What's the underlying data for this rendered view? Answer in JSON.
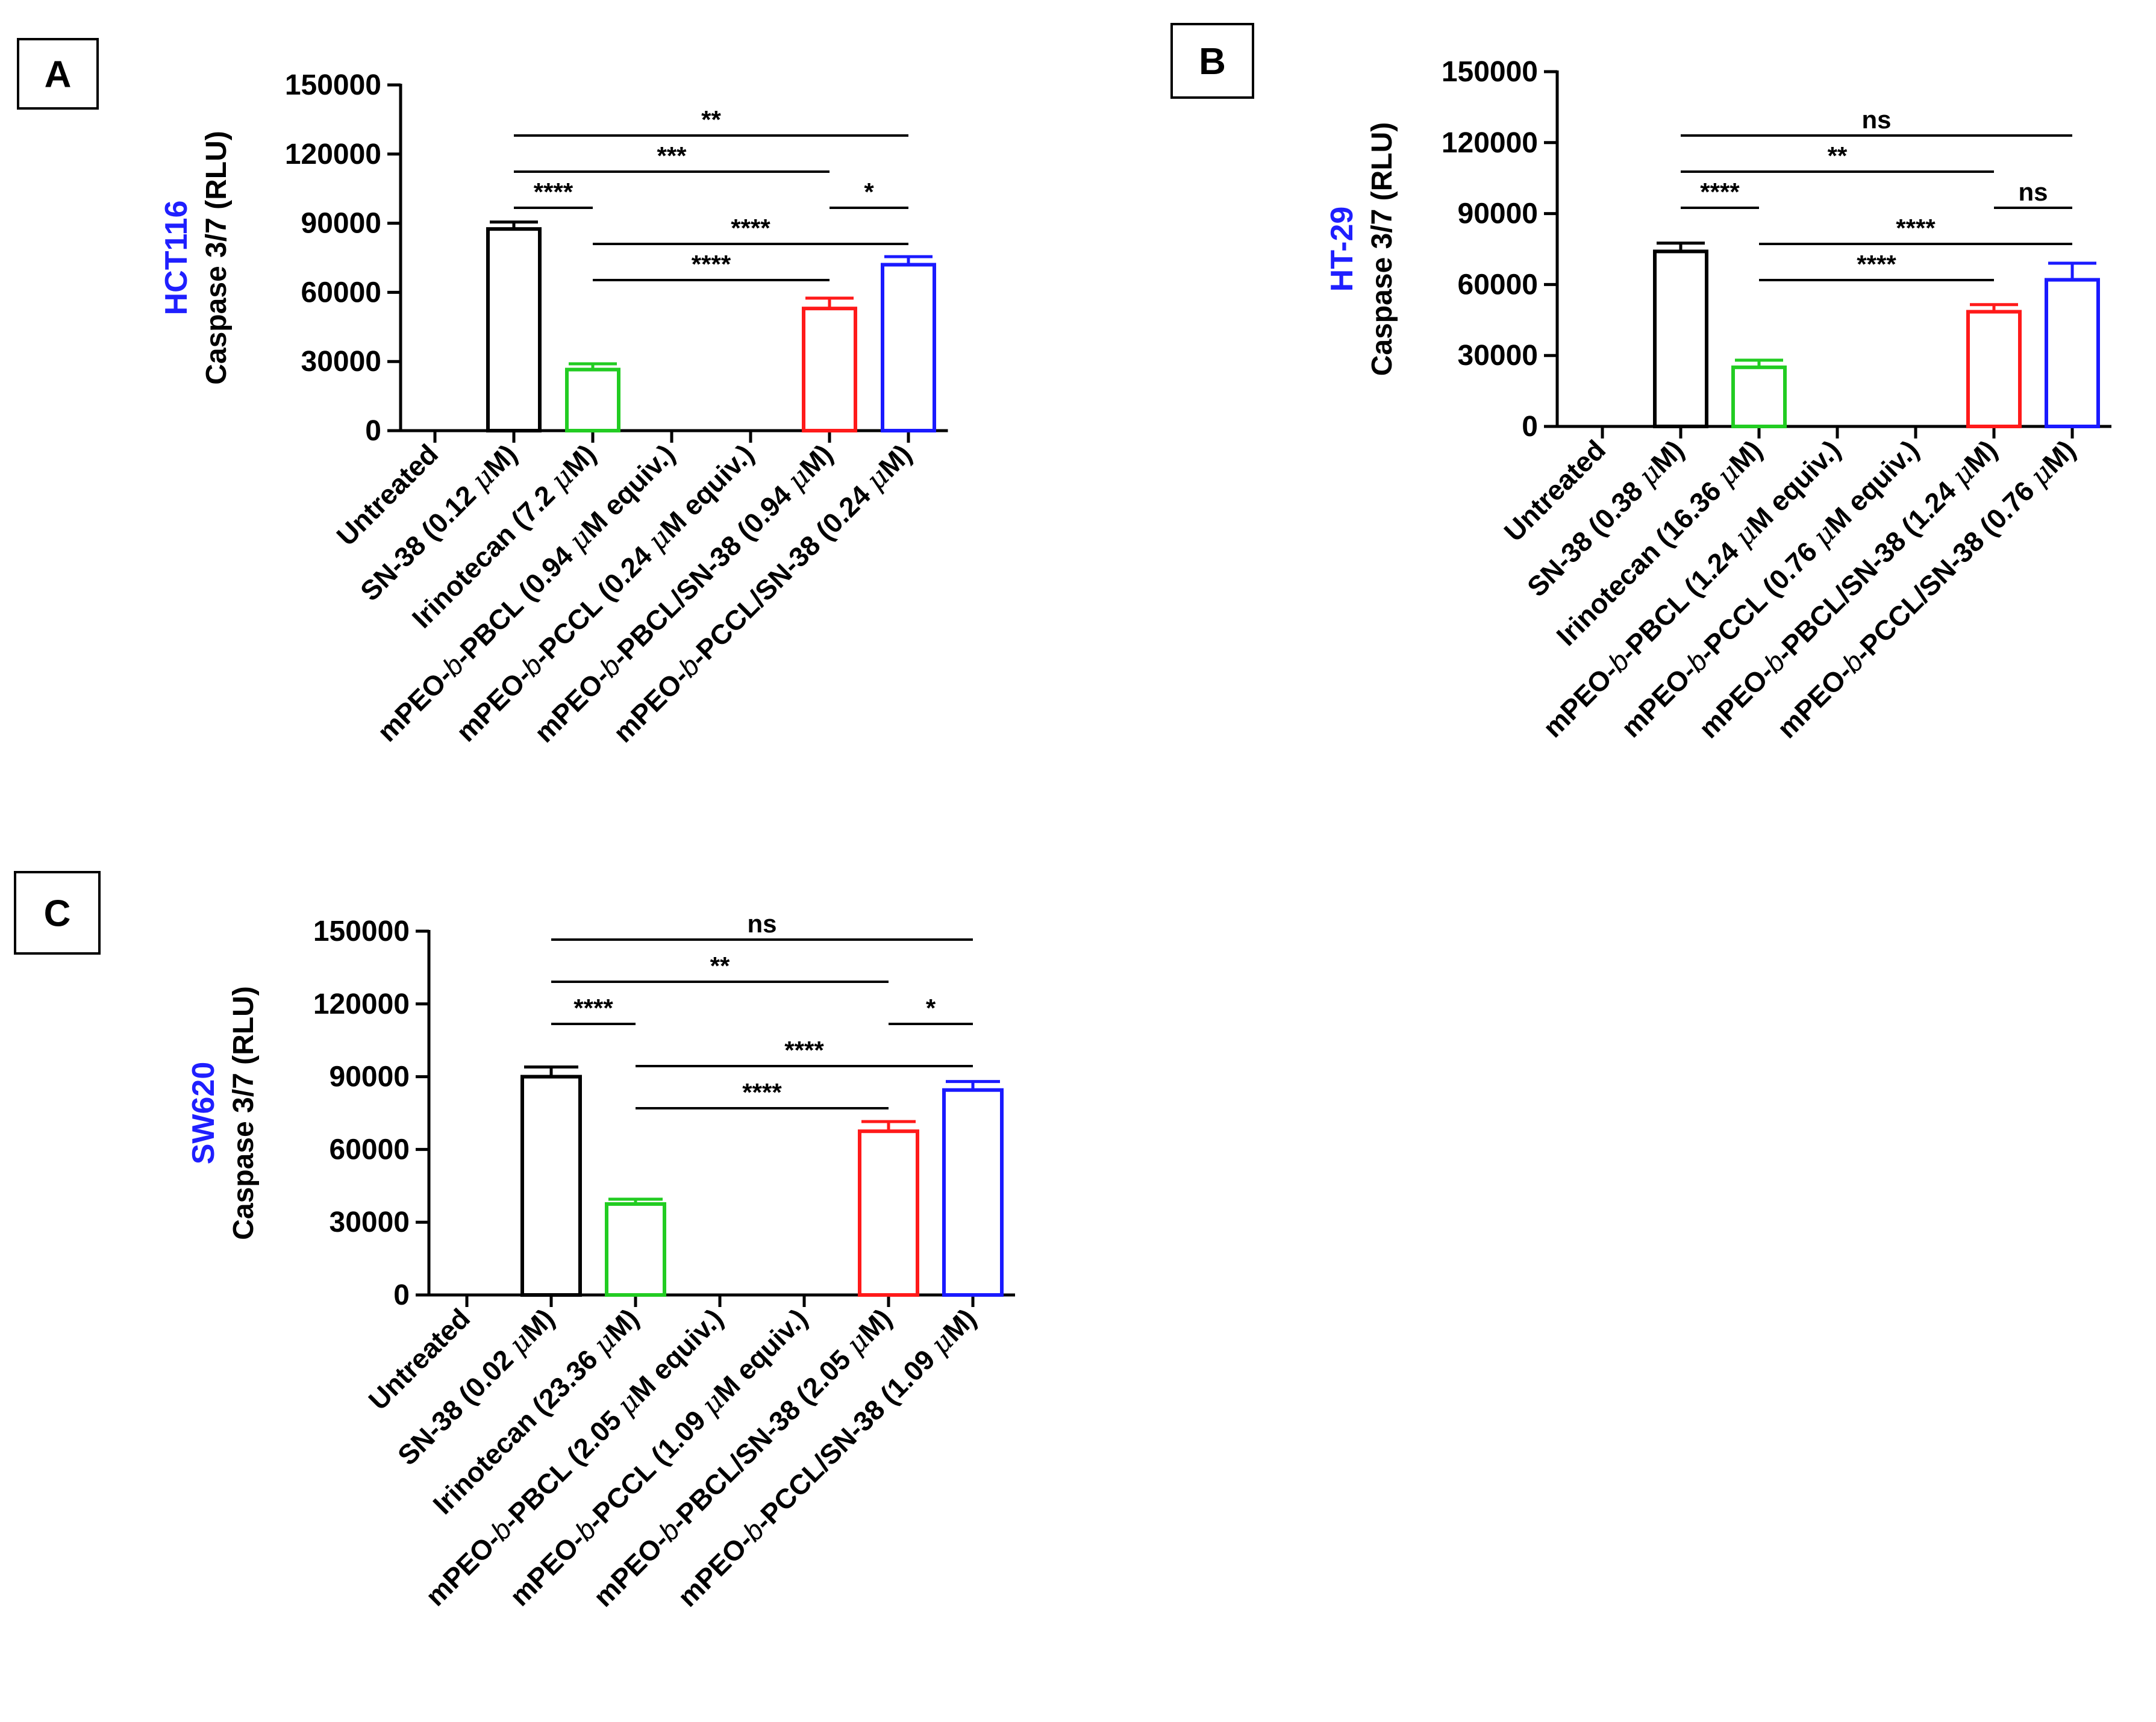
{
  "figure": {
    "colors": {
      "axis": "#000000",
      "cell_line_label": "#1f1fff",
      "panel_border": "#000000"
    }
  },
  "chart_data": [
    {
      "panel": "A",
      "type": "bar",
      "cell_line": "HCT116",
      "ylabel": "Caspase 3/7 (RLU)",
      "xlabel": "",
      "ylim": [
        0,
        150000
      ],
      "yticks": [
        "0",
        "30000",
        "60000",
        "90000",
        "120000",
        "150000"
      ],
      "grid": false,
      "categories": [
        {
          "pre": "Untreated",
          "it": "",
          "post": "",
          "greek": "",
          "tail": ""
        },
        {
          "pre": "SN-38 (0.12 ",
          "it": "",
          "post": "",
          "greek": "μ",
          "tail": "M)"
        },
        {
          "pre": "Irinotecan (7.2 ",
          "it": "",
          "post": "",
          "greek": "μ",
          "tail": "M)"
        },
        {
          "pre": "mPEO-",
          "it": "b",
          "post": "-PBCL (0.94 ",
          "greek": "μ",
          "tail": "M equiv.)"
        },
        {
          "pre": "mPEO-",
          "it": "b",
          "post": "-PCCL (0.24 ",
          "greek": "μ",
          "tail": "M equiv.)"
        },
        {
          "pre": "mPEO-",
          "it": "b",
          "post": "-PBCL/SN-38 (0.94 ",
          "greek": "μ",
          "tail": "M)"
        },
        {
          "pre": "mPEO-",
          "it": "b",
          "post": "-PCCL/SN-38 (0.24 ",
          "greek": "μ",
          "tail": "M)"
        }
      ],
      "values": [
        0,
        87500,
        26500,
        0,
        0,
        53000,
        72000
      ],
      "errors": [
        0,
        3000,
        2500,
        0,
        0,
        4500,
        3500
      ],
      "bar_colors": [
        "#000000",
        "#000000",
        "#22cc22",
        "#000000",
        "#000000",
        "#ff1a1a",
        "#1a1aff"
      ],
      "significance": [
        {
          "from": 1,
          "to": 6,
          "level": 4,
          "label": "**"
        },
        {
          "from": 1,
          "to": 5,
          "level": 3,
          "label": "***"
        },
        {
          "from": 1,
          "to": 2,
          "level": 2,
          "label": "****"
        },
        {
          "from": 5,
          "to": 6,
          "level": 2,
          "label": "*"
        },
        {
          "from": 2,
          "to": 6,
          "level": 1,
          "label": "****"
        },
        {
          "from": 2,
          "to": 5,
          "level": 0,
          "label": "****"
        }
      ]
    },
    {
      "panel": "B",
      "type": "bar",
      "cell_line": "HT-29",
      "ylabel": "Caspase 3/7 (RLU)",
      "xlabel": "",
      "ylim": [
        0,
        150000
      ],
      "yticks": [
        "0",
        "30000",
        "60000",
        "90000",
        "120000",
        "150000"
      ],
      "grid": false,
      "categories": [
        {
          "pre": "Untreated",
          "it": "",
          "post": "",
          "greek": "",
          "tail": ""
        },
        {
          "pre": "SN-38 (0.38 ",
          "it": "",
          "post": "",
          "greek": "μ",
          "tail": "M)"
        },
        {
          "pre": "Irinotecan (16.36 ",
          "it": "",
          "post": "",
          "greek": "μ",
          "tail": "M)"
        },
        {
          "pre": "mPEO-",
          "it": "b",
          "post": "-PBCL (1.24 ",
          "greek": "μ",
          "tail": "M equiv.)"
        },
        {
          "pre": "mPEO-",
          "it": "b",
          "post": "-PCCL (0.76 ",
          "greek": "μ",
          "tail": "M equiv.)"
        },
        {
          "pre": "mPEO-",
          "it": "b",
          "post": "-PBCL/SN-38 (1.24 ",
          "greek": "μ",
          "tail": "M)"
        },
        {
          "pre": "mPEO-",
          "it": "b",
          "post": "-PCCL/SN-38 (0.76 ",
          "greek": "μ",
          "tail": "M)"
        }
      ],
      "values": [
        0,
        74000,
        25000,
        0,
        0,
        48500,
        62000
      ],
      "errors": [
        0,
        3500,
        3000,
        0,
        0,
        3000,
        7000
      ],
      "bar_colors": [
        "#000000",
        "#000000",
        "#22cc22",
        "#000000",
        "#000000",
        "#ff1a1a",
        "#1a1aff"
      ],
      "significance": [
        {
          "from": 1,
          "to": 6,
          "level": 4,
          "label": "ns"
        },
        {
          "from": 1,
          "to": 5,
          "level": 3,
          "label": "**"
        },
        {
          "from": 1,
          "to": 2,
          "level": 2,
          "label": "****"
        },
        {
          "from": 5,
          "to": 6,
          "level": 2,
          "label": "ns"
        },
        {
          "from": 2,
          "to": 6,
          "level": 1,
          "label": "****"
        },
        {
          "from": 2,
          "to": 5,
          "level": 0,
          "label": "****"
        }
      ]
    },
    {
      "panel": "C",
      "type": "bar",
      "cell_line": "SW620",
      "ylabel": "Caspase 3/7 (RLU)",
      "xlabel": "",
      "ylim": [
        0,
        150000
      ],
      "yticks": [
        "0",
        "30000",
        "60000",
        "90000",
        "120000",
        "150000"
      ],
      "grid": false,
      "categories": [
        {
          "pre": "Untreated",
          "it": "",
          "post": "",
          "greek": "",
          "tail": ""
        },
        {
          "pre": "SN-38 (0.02 ",
          "it": "",
          "post": "",
          "greek": "μ",
          "tail": "M)"
        },
        {
          "pre": "Irinotecan (23.36 ",
          "it": "",
          "post": "",
          "greek": "μ",
          "tail": "M)"
        },
        {
          "pre": "mPEO-",
          "it": "b",
          "post": "-PBCL (2.05 ",
          "greek": "μ",
          "tail": "M equiv.)"
        },
        {
          "pre": "mPEO-",
          "it": "b",
          "post": "-PCCL (1.09 ",
          "greek": "μ",
          "tail": "M equiv.)"
        },
        {
          "pre": "mPEO-",
          "it": "b",
          "post": "-PBCL/SN-38 (2.05 ",
          "greek": "μ",
          "tail": "M)"
        },
        {
          "pre": "mPEO-",
          "it": "b",
          "post": "-PCCL/SN-38 (1.09 ",
          "greek": "μ",
          "tail": "M)"
        }
      ],
      "values": [
        0,
        90000,
        37500,
        0,
        0,
        67500,
        84500
      ],
      "errors": [
        0,
        4000,
        2000,
        0,
        0,
        4000,
        3500
      ],
      "bar_colors": [
        "#000000",
        "#000000",
        "#22cc22",
        "#000000",
        "#000000",
        "#ff1a1a",
        "#1a1aff"
      ],
      "significance": [
        {
          "from": 1,
          "to": 6,
          "level": 4,
          "label": "ns"
        },
        {
          "from": 1,
          "to": 5,
          "level": 3,
          "label": "**"
        },
        {
          "from": 1,
          "to": 2,
          "level": 2,
          "label": "****"
        },
        {
          "from": 5,
          "to": 6,
          "level": 2,
          "label": "*"
        },
        {
          "from": 2,
          "to": 6,
          "level": 1,
          "label": "****"
        },
        {
          "from": 2,
          "to": 5,
          "level": 0,
          "label": "****"
        }
      ]
    }
  ]
}
